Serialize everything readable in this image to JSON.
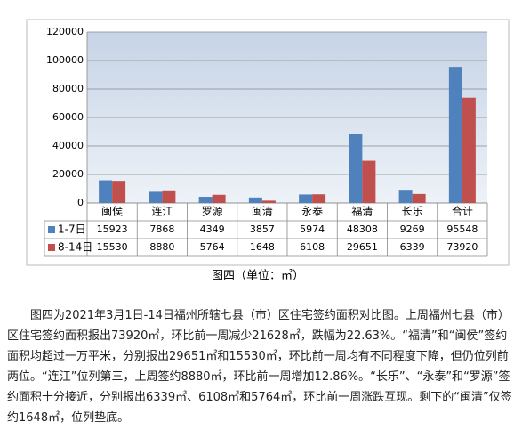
{
  "chart_data": {
    "type": "bar",
    "categories": [
      "闽侯",
      "连江",
      "罗源",
      "闽清",
      "永泰",
      "福清",
      "长乐",
      "合计"
    ],
    "series": [
      {
        "name": "1-7日",
        "color": "#4f81bd",
        "values": [
          15923,
          7868,
          4349,
          3857,
          5974,
          48308,
          9269,
          95548
        ]
      },
      {
        "name": "8-14日",
        "color": "#c0504d",
        "values": [
          15530,
          8880,
          5764,
          1648,
          6108,
          29651,
          6339,
          73920
        ]
      }
    ],
    "ylim": [
      0,
      120000
    ],
    "yticks": [
      0,
      20000,
      40000,
      60000,
      80000,
      100000,
      120000
    ],
    "grid": true
  },
  "caption": "图四（单位：㎡）",
  "paragraph": "图四为2021年3月1日-14日福州所辖七县（市）区住宅签约面积对比图。上周福州七县（市）区住宅签约面积报出73920㎡，环比前一周减少21628㎡，跌幅为22.63%。“福清”和“闽侯”签约面积均超过一万平米，分别报出29651㎡和15530㎡，环比前一周均有不同程度下降，但仍位列前两位。“连江”位列第三，上周签约8880㎡，环比前一周增加12.86%。“长乐”、“永泰”和“罗源”签约面积十分接近，分别报出6339㎡、6108㎡和5764㎡，环比前一周涨跌互现。剩下的“闽清”仅签约1648㎡，位列垫底。"
}
